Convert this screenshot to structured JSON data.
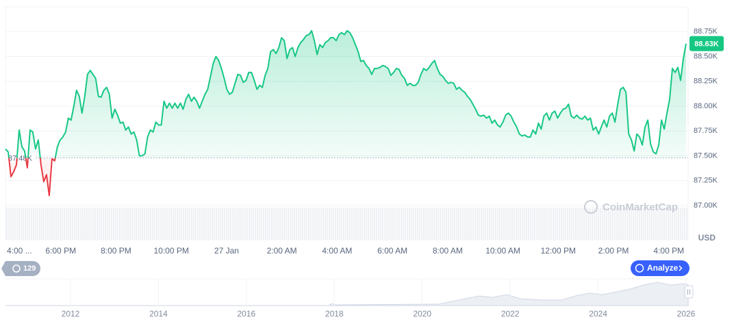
{
  "chart_data": {
    "type": "line",
    "series": [
      {
        "name": "Price",
        "color": "#16c784",
        "down_color": "#ea3943",
        "values": [
          87.57,
          87.54,
          87.29,
          87.34,
          87.41,
          87.76,
          87.59,
          87.55,
          87.38,
          87.76,
          87.74,
          87.57,
          87.66,
          87.41,
          87.24,
          87.31,
          87.1,
          87.47,
          87.45,
          87.59,
          87.66,
          87.69,
          87.74,
          87.88,
          87.86,
          88.0,
          88.16,
          88.1,
          87.93,
          88.1,
          88.32,
          88.36,
          88.32,
          88.28,
          88.1,
          88.09,
          88.16,
          88.19,
          88.12,
          87.88,
          87.97,
          87.91,
          87.83,
          87.84,
          87.76,
          87.79,
          87.72,
          87.74,
          87.66,
          87.5,
          87.5,
          87.52,
          87.69,
          87.76,
          87.74,
          87.84,
          87.81,
          87.81,
          88.05,
          87.98,
          88.03,
          87.98,
          88.03,
          87.98,
          88.03,
          87.97,
          88.07,
          88.12,
          88.05,
          88.09,
          88.05,
          87.98,
          88.05,
          88.12,
          88.17,
          88.3,
          88.43,
          88.5,
          88.46,
          88.38,
          88.28,
          88.17,
          88.12,
          88.14,
          88.23,
          88.32,
          88.31,
          88.24,
          88.26,
          88.34,
          88.34,
          88.26,
          88.17,
          88.21,
          88.19,
          88.31,
          88.38,
          88.55,
          88.57,
          88.53,
          88.59,
          88.69,
          88.66,
          88.48,
          88.57,
          88.59,
          88.5,
          88.59,
          88.64,
          88.67,
          88.71,
          88.72,
          88.76,
          88.66,
          88.52,
          88.62,
          88.59,
          88.64,
          88.66,
          88.69,
          88.69,
          88.66,
          88.72,
          88.74,
          88.72,
          88.76,
          88.74,
          88.69,
          88.62,
          88.55,
          88.45,
          88.46,
          88.41,
          88.38,
          88.32,
          88.38,
          88.38,
          88.39,
          88.41,
          88.4,
          88.38,
          88.31,
          88.34,
          88.38,
          88.37,
          88.31,
          88.28,
          88.21,
          88.23,
          88.21,
          88.21,
          88.24,
          88.32,
          88.38,
          88.36,
          88.39,
          88.43,
          88.46,
          88.38,
          88.32,
          88.3,
          88.26,
          88.23,
          88.24,
          88.23,
          88.17,
          88.19,
          88.16,
          88.14,
          88.1,
          88.07,
          88.02,
          87.97,
          87.91,
          87.9,
          87.91,
          87.88,
          87.9,
          87.83,
          87.86,
          87.81,
          87.79,
          87.84,
          87.91,
          87.93,
          87.9,
          87.84,
          87.79,
          87.72,
          87.7,
          87.71,
          87.69,
          87.69,
          87.76,
          87.72,
          87.83,
          87.77,
          87.9,
          87.93,
          87.86,
          87.93,
          87.95,
          87.88,
          87.93,
          87.97,
          87.98,
          88.02,
          87.9,
          87.88,
          87.91,
          87.88,
          87.87,
          87.9,
          87.86,
          87.88,
          87.76,
          87.79,
          87.72,
          87.79,
          87.86,
          87.79,
          87.9,
          87.93,
          87.84,
          88.02,
          88.17,
          88.19,
          88.14,
          87.72,
          87.66,
          87.55,
          87.72,
          87.69,
          87.61,
          87.79,
          87.86,
          87.62,
          87.54,
          87.52,
          87.61,
          87.86,
          87.77,
          87.93,
          88.07,
          88.38,
          88.34,
          88.39,
          88.26,
          88.48,
          88.63
        ]
      }
    ],
    "xlim": [
      -8,
      16.7
    ],
    "xticks": [
      {
        "value": -8,
        "label": "4:00 ..."
      },
      {
        "value": -6,
        "label": "6:00 PM"
      },
      {
        "value": -4,
        "label": "8:00 PM"
      },
      {
        "value": -2,
        "label": "10:00 PM"
      },
      {
        "value": 0,
        "label": "27 Jan"
      },
      {
        "value": 2,
        "label": "2:00 AM"
      },
      {
        "value": 4,
        "label": "4:00 AM"
      },
      {
        "value": 6,
        "label": "6:00 AM"
      },
      {
        "value": 8,
        "label": "8:00 AM"
      },
      {
        "value": 10,
        "label": "10:00 AM"
      },
      {
        "value": 12,
        "label": "12:00 PM"
      },
      {
        "value": 14,
        "label": "2:00 PM"
      },
      {
        "value": 16,
        "label": "4:00 PM"
      }
    ],
    "ylim": [
      87,
      89
    ],
    "yticks": [
      {
        "value": 88.75,
        "label": "88.75K"
      },
      {
        "value": 88.5,
        "label": "88.50K"
      },
      {
        "value": 88.25,
        "label": "88.25K"
      },
      {
        "value": 88,
        "label": "88.00K"
      },
      {
        "value": 87.75,
        "label": "87.75K"
      },
      {
        "value": 87.5,
        "label": "87.50K"
      },
      {
        "value": 87.25,
        "label": "87.25K"
      },
      {
        "value": 87,
        "label": "87.00K"
      }
    ],
    "reference": {
      "value": 87.48,
      "label": "87.48K"
    },
    "current": {
      "value": 88.63,
      "label": "88.63K"
    },
    "grid": true,
    "currency": "USD",
    "watermark": "CoinMarketCap"
  },
  "controls": {
    "badge": "129",
    "analyze": "Analyze"
  },
  "navigator": {
    "years": [
      "2012",
      "2014",
      "2016",
      "2018",
      "2020",
      "2022",
      "2024",
      "2026"
    ]
  }
}
